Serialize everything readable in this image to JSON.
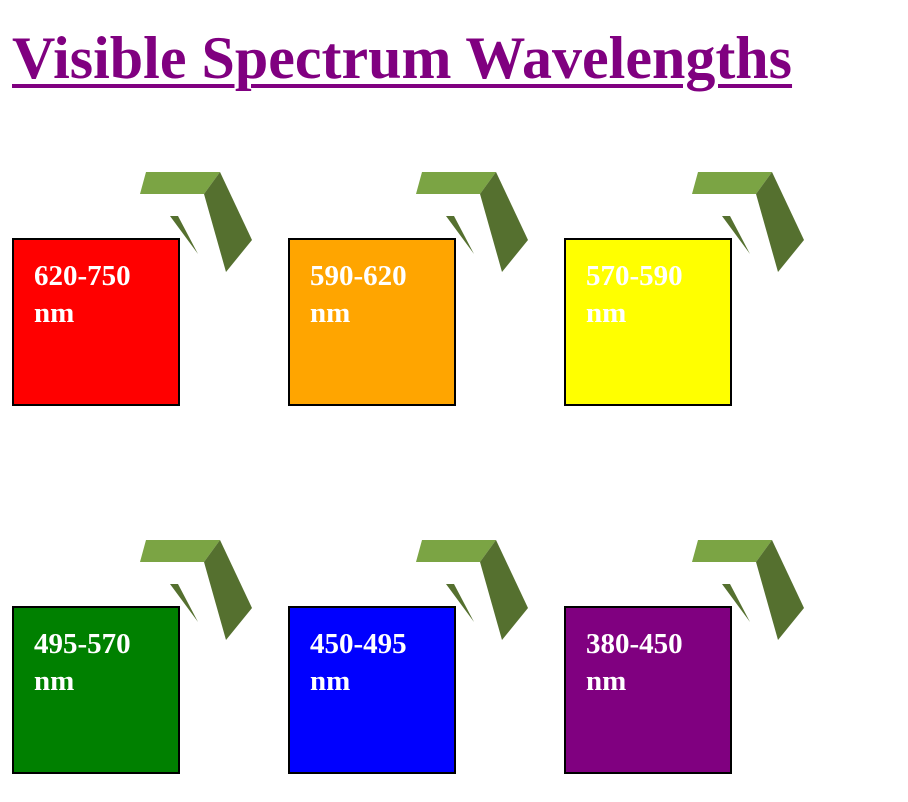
{
  "page": {
    "title": "Visible Spectrum Wavelengths",
    "title_color": "#800080",
    "arrow_icon": "chevron-arrow-icon",
    "arrow_colors": {
      "light": "#7ba444",
      "dark": "#55702f"
    }
  },
  "swatches": [
    {
      "label": "620-750 nm",
      "color": "#ff0000"
    },
    {
      "label": "590-620 nm",
      "color": "#ffa500"
    },
    {
      "label": "570-590 nm",
      "color": "#ffff00"
    },
    {
      "label": "495-570 nm",
      "color": "#008000"
    },
    {
      "label": "450-495 nm",
      "color": "#0000ff"
    },
    {
      "label": "380-450 nm",
      "color": "#800080"
    }
  ]
}
